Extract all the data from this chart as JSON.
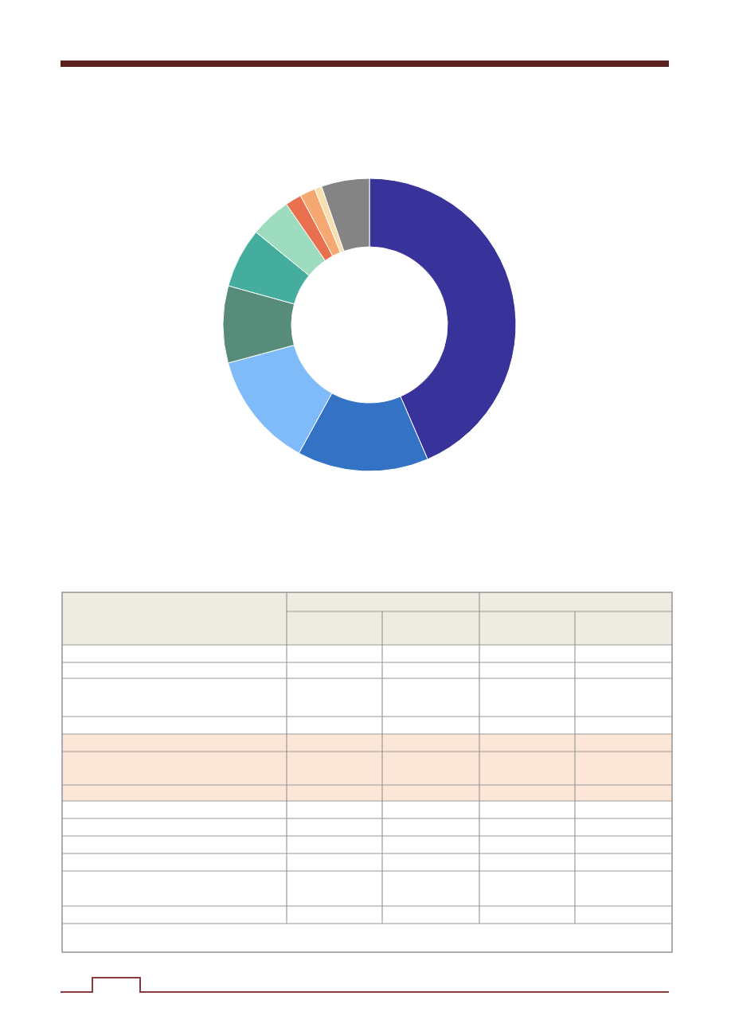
{
  "chart_data": {
    "type": "donut",
    "categories": [
      null,
      null,
      null,
      null,
      null,
      null,
      null,
      null,
      null,
      null
    ],
    "values": [
      43.5,
      14.5,
      12.8,
      8.5,
      6.6,
      4.5,
      1.8,
      1.7,
      0.8,
      5.3
    ],
    "colors": [
      "#37339a",
      "#3372c4",
      "#7fbaf9",
      "#588c7a",
      "#44ad9e",
      "#9edcc0",
      "#e8704e",
      "#f5a870",
      "#f8dfb0",
      "#848484"
    ]
  }
}
